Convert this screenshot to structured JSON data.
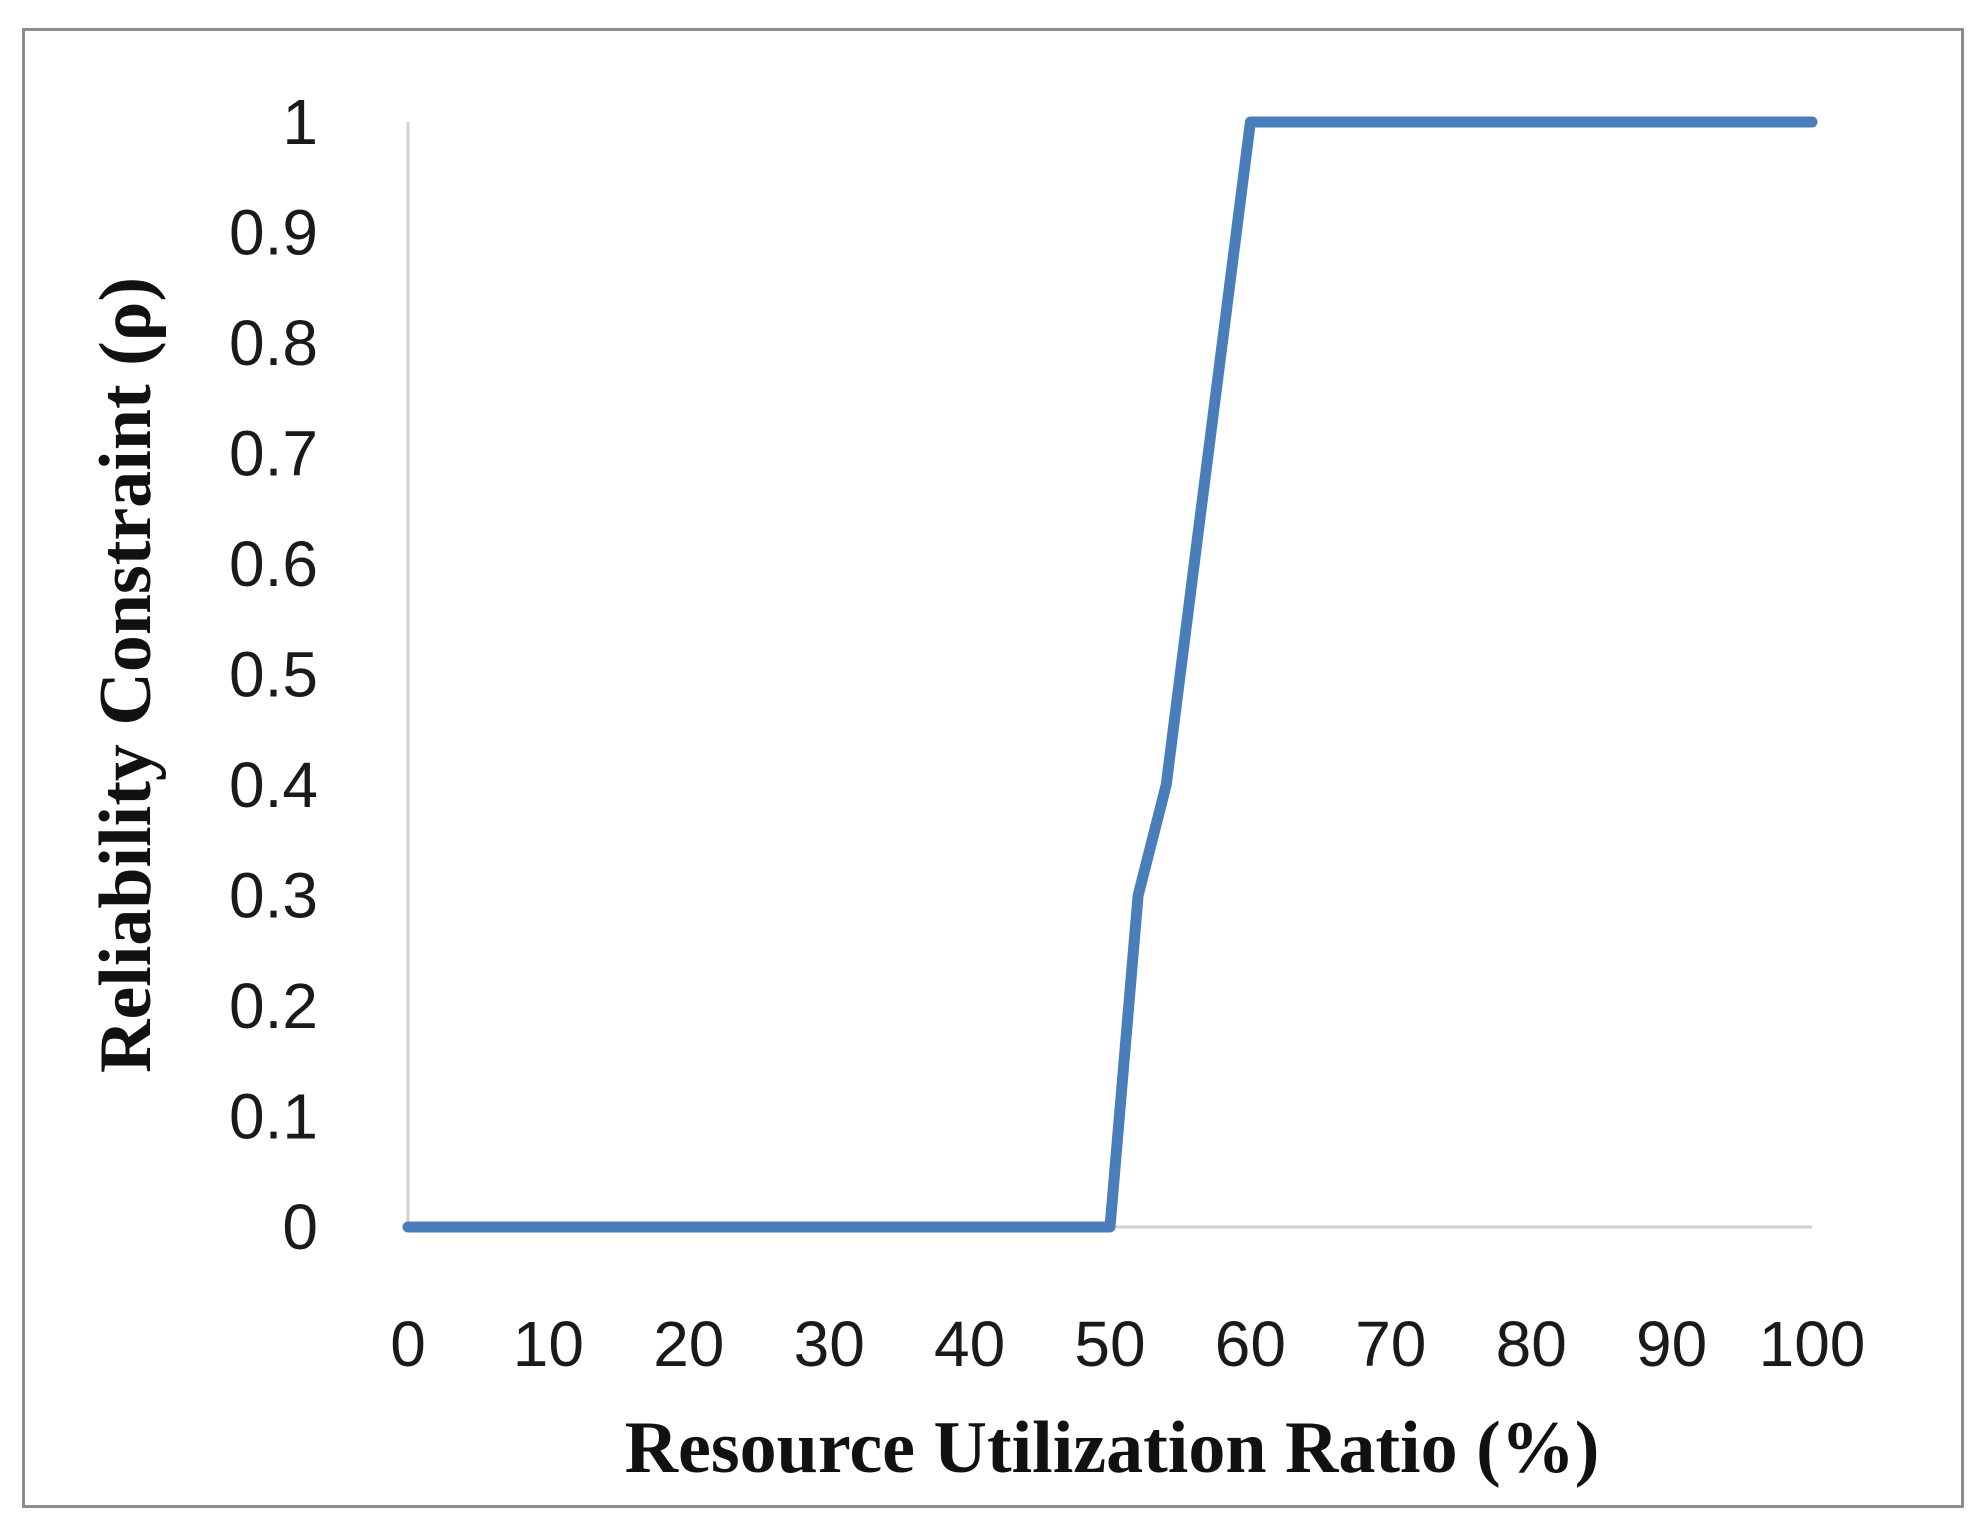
{
  "chart_data": {
    "type": "line",
    "title": "",
    "xlabel": "Resource Utilization  Ratio (%)",
    "ylabel": "Reliability  Constraint  (ρ)",
    "xlim": [
      0,
      100
    ],
    "ylim": [
      0,
      1
    ],
    "x_ticks": [
      0,
      10,
      20,
      30,
      40,
      50,
      60,
      70,
      80,
      90,
      100
    ],
    "x_tick_labels": [
      "0",
      "10",
      "20",
      "30",
      "40",
      "50",
      "60",
      "70",
      "80",
      "90",
      "100"
    ],
    "y_ticks": [
      0,
      0.1,
      0.2,
      0.3,
      0.4,
      0.5,
      0.6,
      0.7,
      0.8,
      0.9,
      1
    ],
    "y_tick_labels": [
      "0",
      "0.1",
      "0.2",
      "0.3",
      "0.4",
      "0.5",
      "0.6",
      "0.7",
      "0.8",
      "0.9",
      "1"
    ],
    "grid": false,
    "legend": "none",
    "series": [
      {
        "color": "#4a7ebb",
        "x": [
          0,
          10,
          20,
          30,
          40,
          50,
          52,
          54,
          56,
          58,
          60,
          70,
          80,
          90,
          100
        ],
        "y": [
          0,
          0,
          0,
          0,
          0,
          0,
          0.3,
          0.4,
          0.6,
          0.8,
          1,
          1,
          1,
          1,
          1
        ]
      }
    ]
  }
}
